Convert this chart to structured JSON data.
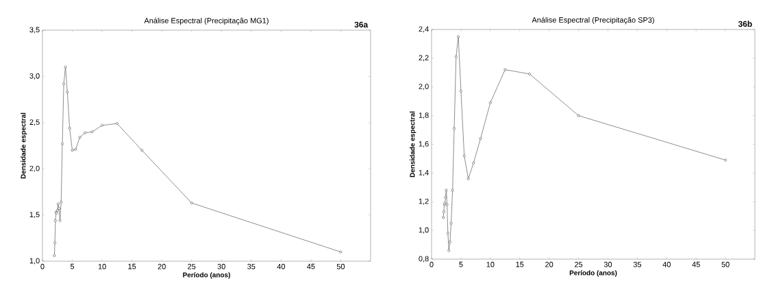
{
  "chart_data": [
    {
      "type": "line",
      "title": "Análise Espectral (Precipitação MG1)",
      "annotations": [
        "36a"
      ],
      "xlabel": "Período (anos)",
      "ylabel": "Densidade espectral",
      "x": [
        2.0,
        2.08,
        2.17,
        2.27,
        2.38,
        2.5,
        2.63,
        2.78,
        2.94,
        3.125,
        3.33,
        3.57,
        3.85,
        4.17,
        4.55,
        5.0,
        5.56,
        6.25,
        7.14,
        8.33,
        10.0,
        12.5,
        16.67,
        25.0,
        50.0
      ],
      "series": [
        {
          "color": "#404040",
          "values": [
            1.06,
            1.2,
            1.44,
            1.53,
            1.52,
            1.55,
            1.62,
            1.57,
            1.44,
            1.64,
            2.27,
            2.92,
            3.1,
            2.83,
            2.44,
            2.2,
            2.21,
            2.34,
            2.39,
            2.4,
            2.47,
            2.49,
            2.2,
            1.63,
            1.1
          ]
        }
      ],
      "xlim": [
        0,
        55
      ],
      "xticks": [
        0,
        5,
        10,
        15,
        20,
        25,
        30,
        35,
        40,
        45,
        50
      ],
      "ylim": [
        1.0,
        3.5
      ],
      "yticks": [
        {
          "value": 1.0,
          "label": "1,0"
        },
        {
          "value": 1.5,
          "label": "1,5"
        },
        {
          "value": 2.0,
          "label": "2,0"
        },
        {
          "value": 2.5,
          "label": "2,5"
        },
        {
          "value": 3.0,
          "label": "3,0"
        },
        {
          "value": 3.5,
          "label": "3,5"
        }
      ],
      "marker": "circle",
      "line_style": "solid",
      "grid": false
    },
    {
      "type": "line",
      "title": "Análise Espectral (Precipitação SP3)",
      "annotations": [
        "36b"
      ],
      "xlabel": "Período (anos)",
      "ylabel": "Densidade espectral",
      "x": [
        2.0,
        2.08,
        2.17,
        2.27,
        2.38,
        2.5,
        2.63,
        2.78,
        2.94,
        3.125,
        3.33,
        3.57,
        3.85,
        4.17,
        4.55,
        5.0,
        5.56,
        6.25,
        7.14,
        8.33,
        10.0,
        12.5,
        16.67,
        25.0,
        50.0
      ],
      "series": [
        {
          "color": "#404040",
          "values": [
            1.09,
            1.13,
            1.18,
            1.19,
            1.23,
            1.28,
            1.18,
            0.98,
            0.86,
            0.92,
            1.05,
            1.28,
            1.71,
            2.21,
            2.35,
            1.97,
            1.52,
            1.36,
            1.47,
            1.64,
            1.89,
            2.12,
            2.09,
            1.8,
            1.49
          ]
        }
      ],
      "xlim": [
        0,
        55
      ],
      "xticks": [
        0,
        5,
        10,
        15,
        20,
        25,
        30,
        35,
        40,
        45,
        50
      ],
      "ylim": [
        0.8,
        2.4
      ],
      "yticks": [
        {
          "value": 0.8,
          "label": "0,8"
        },
        {
          "value": 1.0,
          "label": "1,0"
        },
        {
          "value": 1.2,
          "label": "1,2"
        },
        {
          "value": 1.4,
          "label": "1,4"
        },
        {
          "value": 1.6,
          "label": "1,6"
        },
        {
          "value": 1.8,
          "label": "1,8"
        },
        {
          "value": 2.0,
          "label": "2,0"
        },
        {
          "value": 2.2,
          "label": "2,2"
        },
        {
          "value": 2.4,
          "label": "2,4"
        }
      ],
      "marker": "circle",
      "line_style": "solid",
      "grid": false
    }
  ]
}
